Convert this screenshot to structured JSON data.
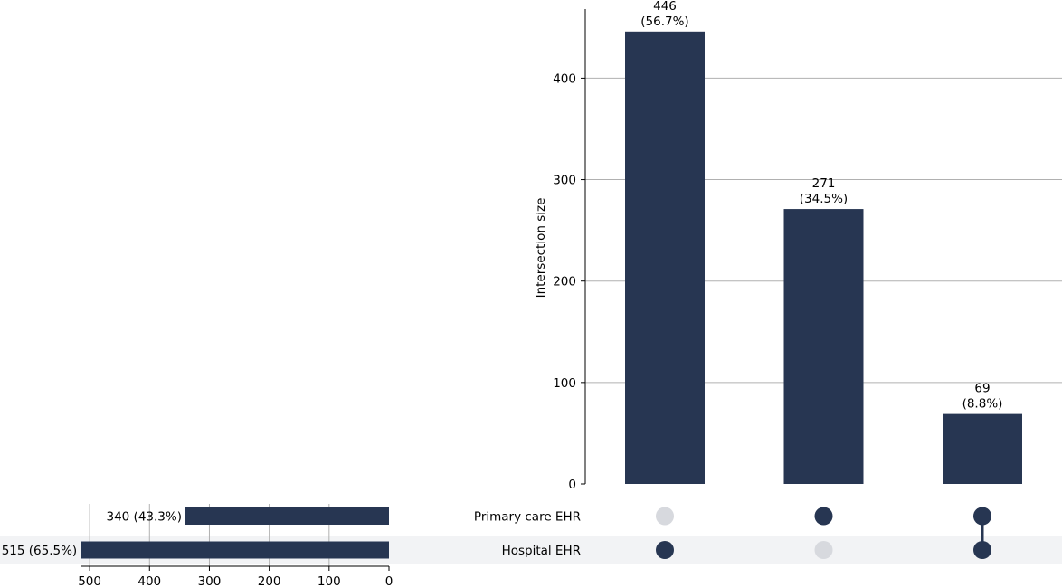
{
  "chart_data": {
    "type": "upset",
    "ylabel": "Intersection size",
    "ylim": [
      0,
      470
    ],
    "yticks": [
      0,
      100,
      200,
      300,
      400
    ],
    "xlim_sets": [
      515,
      0
    ],
    "set_xticks": [
      500,
      400,
      300,
      200,
      100,
      0
    ],
    "sets": [
      {
        "name": "Primary care EHR",
        "size": 340,
        "label": "340 (43.3%)"
      },
      {
        "name": "Hospital EHR",
        "size": 515,
        "label": "515 (65.5%)"
      }
    ],
    "intersections": [
      {
        "members": [
          "Hospital EHR"
        ],
        "size": 446,
        "label": "446",
        "pct": "(56.7%)"
      },
      {
        "members": [
          "Primary care EHR"
        ],
        "size": 271,
        "label": "271",
        "pct": "(34.5%)"
      },
      {
        "members": [
          "Primary care EHR",
          "Hospital EHR"
        ],
        "size": 69,
        "label": "69",
        "pct": "(8.8%)"
      }
    ],
    "grid": true,
    "colors": {
      "bar": "#273652",
      "dot_inactive": "#d7d9de",
      "shade": "#f2f3f5",
      "grid": "#b0b0b0"
    }
  }
}
